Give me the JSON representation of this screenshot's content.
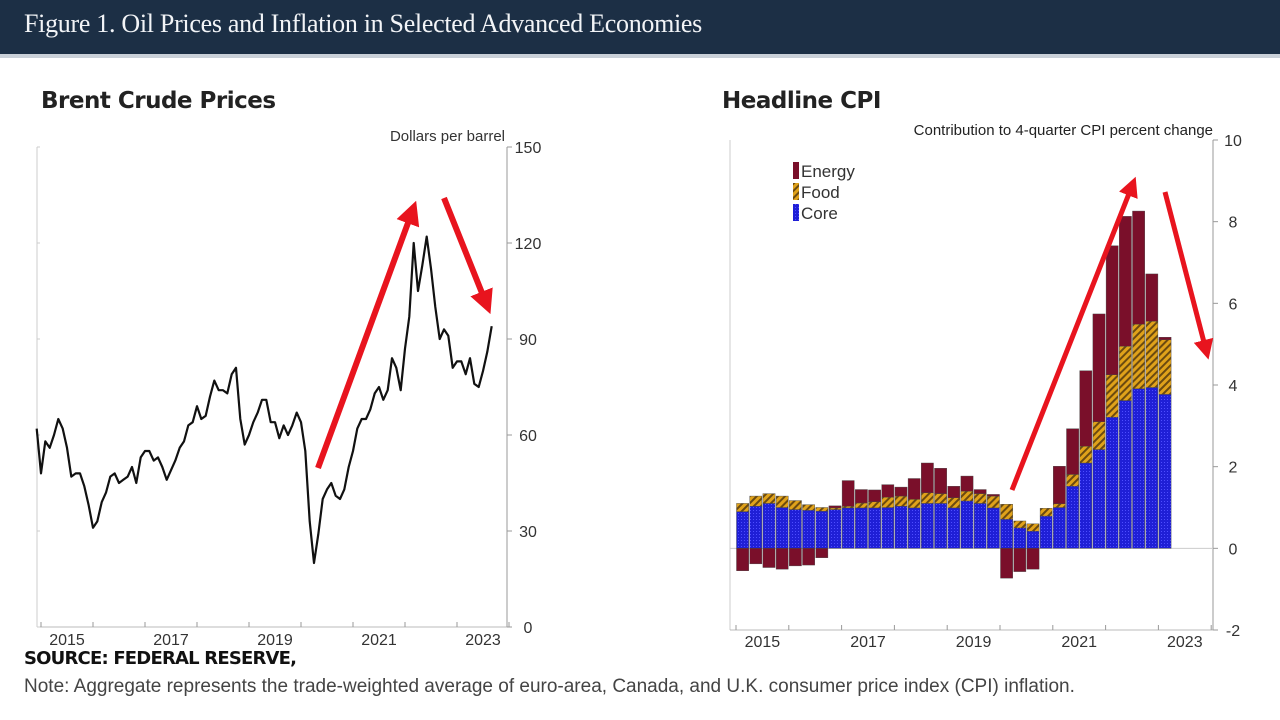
{
  "header": {
    "title": "Figure 1. Oil Prices and Inflation in Selected Advanced Economies"
  },
  "footer": {
    "source": "SOURCE: FEDERAL RESERVE,",
    "note": "Note: Aggregate represents the trade-weighted average of euro-area, Canada, and U.K. consumer price index (CPI) inflation."
  },
  "colors": {
    "energy": "#7a0f2a",
    "food": "#b8860b",
    "core": "#1f1fd6",
    "line": "#111111",
    "arrow": "#e8141e",
    "header_bg": "#1c2f45"
  },
  "chart_data": [
    {
      "type": "line",
      "title": "Brent Crude Prices",
      "ylabel": "Dollars per barrel",
      "ylim": [
        0,
        150
      ],
      "yticks": [
        "0",
        "30",
        "60",
        "90",
        "120",
        "150"
      ],
      "yaxis_position": "right",
      "xtick_labels": [
        "2015",
        "2017",
        "2019",
        "2021",
        "2023"
      ],
      "x_start": "2014-12",
      "frequency": "monthly",
      "values": [
        62,
        48,
        58,
        56,
        60,
        65,
        62,
        56,
        47,
        48,
        48,
        44,
        38,
        31,
        33,
        39,
        42,
        47,
        48,
        45,
        46,
        47,
        50,
        45,
        53,
        55,
        55,
        52,
        53,
        50,
        46,
        49,
        52,
        56,
        58,
        63,
        64,
        69,
        65,
        66,
        72,
        77,
        74,
        74,
        73,
        79,
        81,
        65,
        57,
        60,
        64,
        67,
        71,
        71,
        64,
        64,
        59,
        63,
        60,
        63,
        67,
        64,
        55,
        33,
        20,
        29,
        40,
        43,
        45,
        41,
        40,
        43,
        50,
        55,
        62,
        65,
        65,
        68,
        73,
        75,
        71,
        74,
        84,
        81,
        74,
        87,
        97,
        120,
        105,
        113,
        122,
        112,
        100,
        90,
        93,
        91,
        81,
        83,
        83,
        79,
        84,
        76,
        75,
        80,
        86,
        94
      ],
      "annotations": [
        "up-arrow",
        "down-arrow"
      ]
    },
    {
      "type": "bar",
      "stacked": true,
      "title": "Headline CPI",
      "ylabel": "Contribution to 4-quarter CPI percent change",
      "ylim": [
        -2,
        10
      ],
      "yticks": [
        "-2",
        "0",
        "2",
        "4",
        "6",
        "8",
        "10"
      ],
      "yaxis_position": "right",
      "xtick_labels": [
        "2015",
        "2017",
        "2019",
        "2021",
        "2023"
      ],
      "x_start": "2015-Q1",
      "frequency": "quarterly",
      "legend": "top-left",
      "series": [
        {
          "name": "Energy",
          "values": [
            -0.55,
            -0.38,
            -0.47,
            -0.51,
            -0.43,
            -0.41,
            -0.23,
            0.05,
            0.63,
            0.33,
            0.29,
            0.31,
            0.22,
            0.51,
            0.73,
            0.62,
            0.28,
            0.37,
            0.1,
            0.04,
            -0.73,
            -0.57,
            -0.51,
            0.0,
            0.92,
            1.12,
            1.85,
            2.64,
            3.16,
            3.18,
            2.77,
            1.16,
            0.06
          ]
        },
        {
          "name": "Food",
          "values": [
            0.2,
            0.25,
            0.24,
            0.28,
            0.22,
            0.14,
            0.09,
            0.04,
            0.04,
            0.12,
            0.15,
            0.25,
            0.25,
            0.21,
            0.26,
            0.24,
            0.25,
            0.24,
            0.24,
            0.29,
            0.37,
            0.17,
            0.18,
            0.19,
            0.09,
            0.29,
            0.41,
            0.68,
            1.04,
            1.33,
            1.58,
            1.62,
            1.34
          ]
        },
        {
          "name": "Core",
          "values": [
            0.9,
            1.03,
            1.1,
            1.0,
            0.95,
            0.93,
            0.91,
            0.95,
            0.99,
            0.99,
            0.99,
            1.0,
            1.03,
            0.99,
            1.1,
            1.1,
            0.99,
            1.16,
            1.1,
            0.99,
            0.71,
            0.5,
            0.42,
            0.79,
            1.0,
            1.52,
            2.09,
            2.42,
            3.21,
            3.62,
            3.91,
            3.94,
            3.77
          ]
        }
      ],
      "annotations": [
        "up-arrow",
        "down-arrow"
      ]
    }
  ]
}
